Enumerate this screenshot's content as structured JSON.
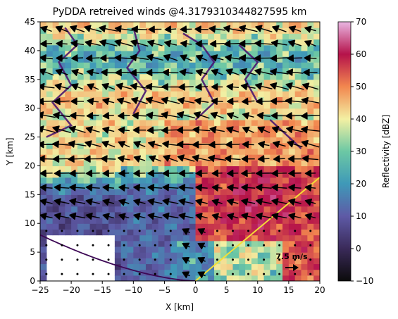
{
  "chart_data": {
    "type": "heatmap",
    "title": "PyDDA retreived winds @4.3179310344827595 km",
    "xlabel": "X [km]",
    "ylabel": "Y [km]",
    "xlim": [
      -25,
      20
    ],
    "ylim": [
      0,
      45
    ],
    "x_ticks": [
      -25,
      -20,
      -15,
      -10,
      -5,
      0,
      5,
      10,
      15,
      20
    ],
    "y_ticks": [
      0,
      5,
      10,
      15,
      20,
      25,
      30,
      35,
      40,
      45
    ],
    "colorbar": {
      "label": "Reflectivity [dBZ]",
      "range": [
        -10,
        70
      ],
      "ticks": [
        -10,
        0,
        10,
        20,
        30,
        40,
        50,
        60,
        70
      ],
      "colormap": "pyart_HomeyerRainbow"
    },
    "reflectivity_regions": [
      {
        "region": "north band y>30",
        "dbz_range": [
          20,
          40
        ]
      },
      {
        "region": "central dry slot near x=-10 to 0, y=12-18",
        "dbz_range": [
          5,
          20
        ]
      },
      {
        "region": "eastern core x=0 to 20, y=5-25",
        "dbz_range": [
          40,
          60
        ]
      },
      {
        "region": "south-west low echo x<-12, y<15",
        "dbz_range": [
          -5,
          10
        ]
      }
    ],
    "no_data_region": {
      "x": [
        -24,
        -13
      ],
      "y": [
        0,
        8
      ]
    },
    "wind_field": {
      "prevailing_direction": "westward (vectors pointing left)",
      "weak_flow_region": "southern low-reflectivity area (dots, near-zero wind)"
    },
    "quiver_key": {
      "label": "7.5 m/s",
      "value": 7.5,
      "units": "m/s"
    },
    "reference_lines": [
      {
        "name": "purple radar range arc",
        "color": "#3d0855"
      },
      {
        "name": "yellow radar beam line",
        "color": "#f5de35"
      }
    ],
    "contour_color": "#4b1670"
  }
}
